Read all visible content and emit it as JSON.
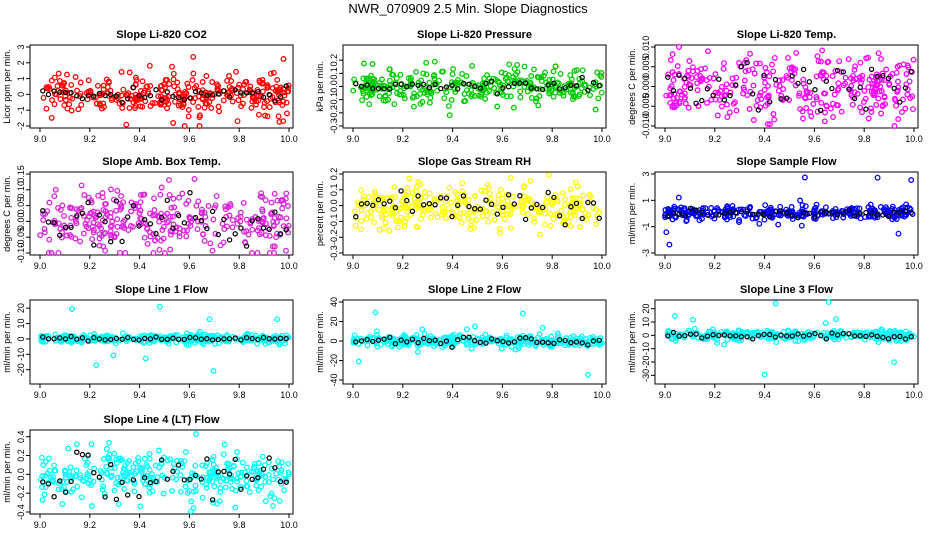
{
  "figure": {
    "title": "NWR_070909  2.5 Min. Slope Diagnostics"
  },
  "chart_data": [
    {
      "type": "scatter",
      "title": "Slope Li-820 CO2",
      "ylabel": "Licor ppm per min.",
      "color": "#ff0000",
      "xlim": [
        9.0,
        10.0
      ],
      "ylim": [
        -2.0,
        3.0
      ],
      "xticks": [
        "9.0",
        "9.2",
        "9.4",
        "9.6",
        "9.8",
        "10.0"
      ],
      "yticks": [
        {
          "v": -2,
          "t": "-2"
        },
        {
          "v": -1,
          "t": "-1"
        },
        {
          "v": 0,
          "t": "0"
        },
        {
          "v": 1,
          "t": "1"
        },
        {
          "v": 2,
          "t": "2"
        },
        {
          "v": 3,
          "t": "3"
        }
      ],
      "spread": 0.6,
      "outlier_amp": 2.6,
      "black_spread": 0.2,
      "seed": 11
    },
    {
      "type": "scatter",
      "title": "Slope Li-820 Pressure",
      "ylabel": "kPa per min.",
      "color": "#00cc00",
      "xlim": [
        9.0,
        10.0
      ],
      "ylim": [
        -0.3,
        0.3
      ],
      "xticks": [
        "9.0",
        "9.2",
        "9.4",
        "9.6",
        "9.8",
        "10.0"
      ],
      "yticks": [
        {
          "v": -0.3,
          "t": "-0.3"
        },
        {
          "v": -0.2,
          "t": "-0.2"
        },
        {
          "v": -0.1,
          "t": "-0.1"
        },
        {
          "v": 0.0,
          "t": "0.0"
        },
        {
          "v": 0.1,
          "t": "0.1"
        },
        {
          "v": 0.2,
          "t": "0.2"
        }
      ],
      "spread": 0.06,
      "outlier_amp": 0.2,
      "black_spread": 0.02,
      "seed": 23
    },
    {
      "type": "scatter",
      "title": "Slope Li-820 Temp.",
      "ylabel": "degrees C per min.",
      "color": "#ff00ff",
      "xlim": [
        9.0,
        10.0
      ],
      "ylim": [
        -0.01,
        0.01
      ],
      "xticks": [
        "9.0",
        "9.2",
        "9.4",
        "9.6",
        "9.8",
        "10.0"
      ],
      "yticks": [
        {
          "v": -0.01,
          "t": "-0.010"
        },
        {
          "v": -0.005,
          "t": "-0.005"
        },
        {
          "v": 0.0,
          "t": "0.000"
        },
        {
          "v": 0.005,
          "t": "0.005"
        },
        {
          "v": 0.01,
          "t": "0.010"
        }
      ],
      "spread": 0.004,
      "outlier_amp": 0.0085,
      "black_spread": 0.003,
      "seed": 37
    },
    {
      "type": "scatter",
      "title": "Slope Amb. Box Temp.",
      "ylabel": "degrees C per min.",
      "color": "#dd22dd",
      "xlim": [
        9.0,
        10.0
      ],
      "ylim": [
        -0.1,
        0.15
      ],
      "xticks": [
        "9.0",
        "9.2",
        "9.4",
        "9.6",
        "9.8",
        "10.0"
      ],
      "yticks": [
        {
          "v": -0.1,
          "t": "-0.10"
        },
        {
          "v": -0.05,
          "t": "-0.05"
        },
        {
          "v": 0.0,
          "t": "0.00"
        },
        {
          "v": 0.05,
          "t": "0.05"
        },
        {
          "v": 0.1,
          "t": "0.10"
        },
        {
          "v": 0.15,
          "t": "0.15"
        }
      ],
      "spread": 0.05,
      "outlier_amp": 0.1,
      "black_spread": 0.04,
      "seed": 41
    },
    {
      "type": "scatter",
      "title": "Slope Gas Stream RH",
      "ylabel": "percent per min.",
      "color": "#ffff00",
      "xlim": [
        9.0,
        10.0
      ],
      "ylim": [
        -0.3,
        0.2
      ],
      "xticks": [
        "9.0",
        "9.2",
        "9.4",
        "9.6",
        "9.8",
        "10.0"
      ],
      "yticks": [
        {
          "v": -0.3,
          "t": "-0.3"
        },
        {
          "v": -0.2,
          "t": "-0.2"
        },
        {
          "v": -0.1,
          "t": "-0.1"
        },
        {
          "v": 0.0,
          "t": "0.0"
        },
        {
          "v": 0.1,
          "t": "0.1"
        },
        {
          "v": 0.2,
          "t": "0.2"
        }
      ],
      "spread": 0.07,
      "outlier_amp": 0.2,
      "black_spread": 0.05,
      "seed": 53
    },
    {
      "type": "scatter",
      "title": "Slope Sample Flow",
      "ylabel": "ml/min per min.",
      "color": "#0000ff",
      "xlim": [
        9.0,
        10.0
      ],
      "ylim": [
        -3.0,
        3.0
      ],
      "xticks": [
        "9.0",
        "9.2",
        "9.4",
        "9.6",
        "9.8",
        "10.0"
      ],
      "yticks": [
        {
          "v": -3,
          "t": "-3"
        },
        {
          "v": -1,
          "t": "-1"
        },
        {
          "v": 1,
          "t": "1"
        },
        {
          "v": 3,
          "t": "3"
        }
      ],
      "spread": 0.25,
      "outlier_amp": 2.8,
      "black_spread": 0.15,
      "seed": 67
    },
    {
      "type": "scatter",
      "title": "Slope Line 1 Flow",
      "ylabel": "ml/min per min.",
      "color": "#00ffff",
      "xlim": [
        9.0,
        10.0
      ],
      "ylim": [
        -28,
        24
      ],
      "xticks": [
        "9.0",
        "9.2",
        "9.4",
        "9.6",
        "9.8",
        "10.0"
      ],
      "yticks": [
        {
          "v": -20,
          "t": "-20"
        },
        {
          "v": -10,
          "t": "-10"
        },
        {
          "v": 0,
          "t": "0"
        },
        {
          "v": 10,
          "t": "10"
        },
        {
          "v": 20,
          "t": "20"
        }
      ],
      "spread": 1.5,
      "outlier_amp": 24,
      "black_spread": 0.6,
      "seed": 71
    },
    {
      "type": "scatter",
      "title": "Slope Line 2 Flow",
      "ylabel": "ml/min per min.",
      "color": "#00ffff",
      "xlim": [
        9.0,
        10.0
      ],
      "ylim": [
        -42,
        40
      ],
      "xticks": [
        "9.0",
        "9.2",
        "9.4",
        "9.6",
        "9.8",
        "10.0"
      ],
      "yticks": [
        {
          "v": -40,
          "t": "-40"
        },
        {
          "v": -20,
          "t": "-20"
        },
        {
          "v": 0,
          "t": "0"
        },
        {
          "v": 20,
          "t": "20"
        },
        {
          "v": 40,
          "t": "40"
        }
      ],
      "spread": 3,
      "outlier_amp": 36,
      "black_spread": 2,
      "seed": 83
    },
    {
      "type": "scatter",
      "title": "Slope Line 3 Flow",
      "ylabel": "ml/min per min.",
      "color": "#00ffff",
      "xlim": [
        9.0,
        10.0
      ],
      "ylim": [
        -35,
        25
      ],
      "xticks": [
        "9.0",
        "9.2",
        "9.4",
        "9.6",
        "9.8",
        "10.0"
      ],
      "yticks": [
        {
          "v": -30,
          "t": "-30"
        },
        {
          "v": -20,
          "t": "-20"
        },
        {
          "v": -10,
          "t": "-10"
        },
        {
          "v": 0,
          "t": "0"
        },
        {
          "v": 10,
          "t": "10"
        },
        {
          "v": 20,
          "t": "20"
        }
      ],
      "spread": 2,
      "outlier_amp": 30,
      "black_spread": 1.5,
      "seed": 97
    },
    {
      "type": "scatter",
      "title": "Slope Line 4 (LT) Flow",
      "ylabel": "ml/min per min.",
      "color": "#00ffff",
      "xlim": [
        9.0,
        10.0
      ],
      "ylim": [
        -0.4,
        0.45
      ],
      "xticks": [
        "9.0",
        "9.2",
        "9.4",
        "9.6",
        "9.8",
        "10.0"
      ],
      "yticks": [
        {
          "v": -0.4,
          "t": "-0.4"
        },
        {
          "v": -0.2,
          "t": "-0.2"
        },
        {
          "v": 0.0,
          "t": "0.0"
        },
        {
          "v": 0.2,
          "t": "0.2"
        },
        {
          "v": 0.4,
          "t": "0.4"
        }
      ],
      "spread": 0.13,
      "outlier_amp": 0.4,
      "black_spread": 0.12,
      "seed": 101
    }
  ]
}
